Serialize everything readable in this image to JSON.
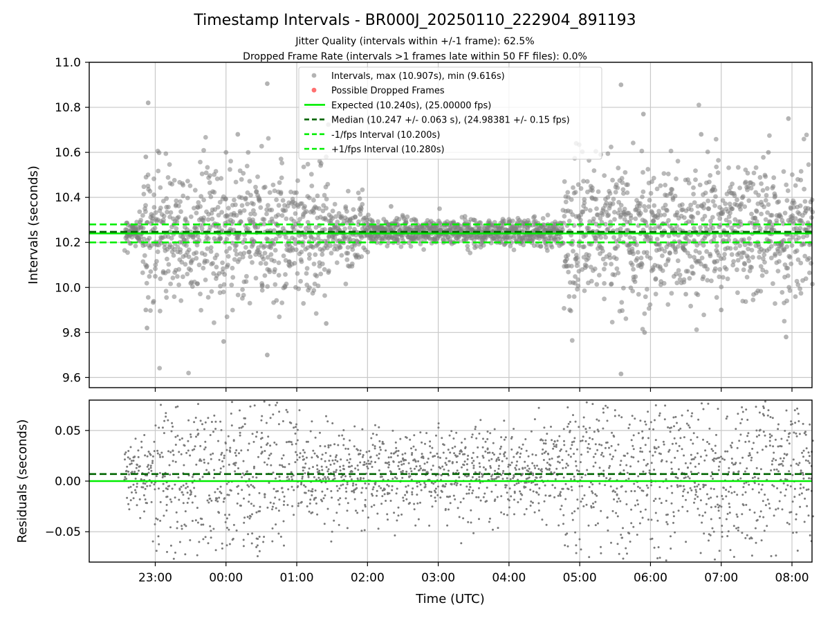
{
  "chart_data": [
    {
      "type": "scatter",
      "title": "Timestamp Intervals - BR000J_20250110_222904_891193",
      "subtitle_lines": [
        "Jitter Quality (intervals within +/-1 frame): 62.5%",
        "Dropped Frame Rate (intervals >1 frames late within 50 FF files): 0.0%"
      ],
      "ylabel": "Intervals (seconds)",
      "ylim": [
        9.555,
        11.0
      ],
      "yticks": [
        9.6,
        9.8,
        10.0,
        10.2,
        10.4,
        10.6,
        10.8,
        11.0
      ],
      "ytick_labels": [
        "9.6",
        "9.8",
        "10.0",
        "10.2",
        "10.4",
        "10.6",
        "10.8",
        "11.0"
      ],
      "x_time_range_utc": [
        "2025-01-10 22:04",
        "2025-01-11 08:17"
      ],
      "grid": true,
      "legend_location": "upper center",
      "legend": [
        "Intervals, max (10.907s), min (9.616s)",
        "Possible Dropped Frames",
        "Expected (10.240s), (25.00000 fps)",
        "Median (10.247 +/- 0.063 s), (24.98381 +/- 0.15 fps)",
        "-1/fps Interval (10.200s)",
        "+1/fps Interval (10.280s)"
      ],
      "reference_lines": [
        {
          "name": "Expected",
          "y": 10.24,
          "style": "solid",
          "color": "#00ee00"
        },
        {
          "name": "Median",
          "y": 10.247,
          "style": "dashed",
          "color": "#006400"
        },
        {
          "name": "-1/fps Interval",
          "y": 10.2,
          "style": "dashed",
          "color": "#00ee00"
        },
        {
          "name": "+1/fps Interval",
          "y": 10.28,
          "style": "dashed",
          "color": "#00ee00"
        }
      ],
      "series": [
        {
          "name": "Intervals",
          "color": "#808080",
          "points": [
            [
              "2025-01-10 22:54",
              10.82
            ],
            [
              "2025-01-10 22:53",
              9.82
            ],
            [
              "2025-01-10 22:52",
              9.9
            ],
            [
              "2025-01-10 22:52",
              10.58
            ],
            [
              "2025-01-11 00:35",
              10.905
            ],
            [
              "2025-01-11 00:35",
              9.7
            ],
            [
              "2025-01-11 01:25",
              10.58
            ],
            [
              "2025-01-11 01:25",
              9.84
            ],
            [
              "2025-01-11 05:35",
              10.9
            ],
            [
              "2025-01-11 05:35",
              9.616
            ],
            [
              "2025-01-11 04:57",
              10.64
            ],
            [
              "2025-01-11 05:54",
              10.77
            ],
            [
              "2025-01-11 07:57",
              10.75
            ],
            [
              "2025-01-11 07:55",
              9.78
            ],
            [
              "2025-01-11 06:43",
              10.68
            ],
            [
              "2025-01-11 00:10",
              10.68
            ],
            [
              "2025-01-11 00:00",
              10.6
            ],
            [
              "2025-01-10 23:58",
              9.76
            ],
            [
              "2025-01-11 02:20",
              10.36
            ],
            [
              "2025-01-11 02:38",
              10.22
            ],
            [
              "2025-01-11 03:30",
              10.3
            ],
            [
              "2025-01-11 04:00",
              10.29
            ],
            [
              "2025-01-11 04:20",
              10.21
            ],
            [
              "2025-01-11 05:55",
              9.8
            ],
            [
              "2025-01-11 06:30",
              9.97
            ],
            [
              "2025-01-11 07:00",
              9.9
            ],
            [
              "2025-01-11 07:40",
              10.6
            ]
          ]
        }
      ]
    },
    {
      "type": "scatter",
      "xlabel": "Time (UTC)",
      "ylabel": "Residuals (seconds)",
      "ylim": [
        -0.08,
        0.08
      ],
      "yticks": [
        -0.05,
        0.0,
        0.05
      ],
      "ytick_labels": [
        "−0.05",
        "0.00",
        "0.05"
      ],
      "xticks": [
        "2025-01-10 23:00",
        "2025-01-11 00:00",
        "2025-01-11 01:00",
        "2025-01-11 02:00",
        "2025-01-11 03:00",
        "2025-01-11 04:00",
        "2025-01-11 05:00",
        "2025-01-11 06:00",
        "2025-01-11 07:00",
        "2025-01-11 08:00"
      ],
      "xtick_labels": [
        "23:00",
        "00:00",
        "01:00",
        "02:00",
        "03:00",
        "04:00",
        "05:00",
        "06:00",
        "07:00",
        "08:00"
      ],
      "grid": true,
      "reference_lines": [
        {
          "name": "Expected",
          "y": 0.0,
          "style": "solid",
          "color": "#00ee00"
        },
        {
          "name": "Median",
          "y": 0.007,
          "style": "dashed",
          "color": "#006400"
        }
      ],
      "series": [
        {
          "name": "Residuals",
          "color": "#808080",
          "points": [
            [
              "2025-01-10 22:40",
              0.02
            ],
            [
              "2025-01-10 23:10",
              -0.07
            ],
            [
              "2025-01-11 00:30",
              0.06
            ],
            [
              "2025-01-11 01:30",
              -0.05
            ],
            [
              "2025-01-11 02:30",
              0.01
            ],
            [
              "2025-01-11 03:30",
              0.02
            ],
            [
              "2025-01-11 04:30",
              -0.02
            ],
            [
              "2025-01-11 05:30",
              0.07
            ],
            [
              "2025-01-11 06:30",
              -0.06
            ],
            [
              "2025-01-11 07:30",
              0.05
            ],
            [
              "2025-01-11 08:10",
              0.03
            ]
          ]
        }
      ]
    }
  ]
}
